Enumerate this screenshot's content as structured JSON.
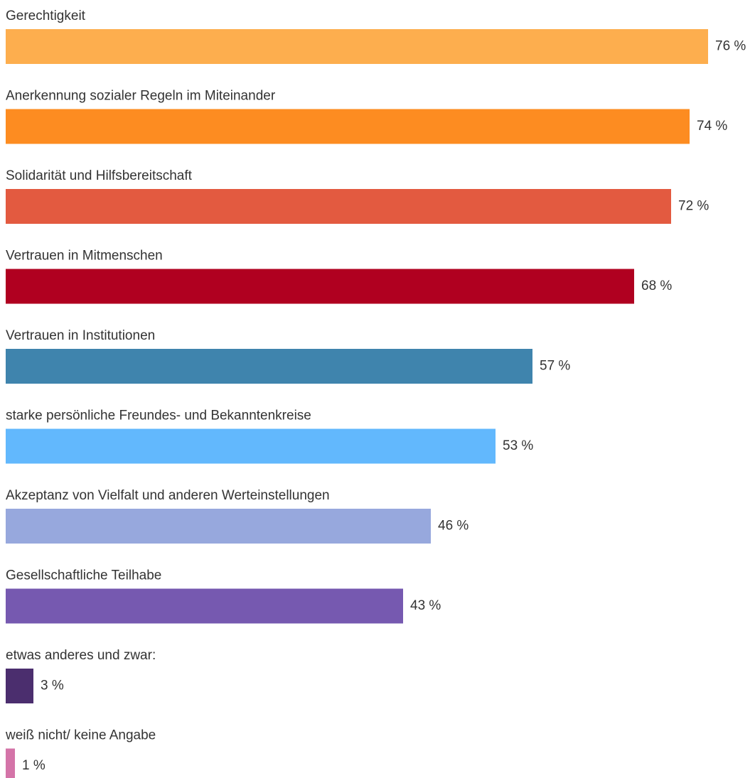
{
  "chart_data": {
    "type": "bar",
    "orientation": "horizontal",
    "categories": [
      "Gerechtigkeit",
      "Anerkennung sozialer Regeln im Miteinander",
      "Solidarität und Hilfsbereitschaft",
      "Vertrauen in Mitmenschen",
      "Vertrauen in Institutionen",
      "starke persönliche Freundes- und Bekanntenkreise",
      "Akzeptanz von Vielfalt und anderen Werteinstellungen",
      "Gesellschaftliche Teilhabe",
      "etwas anderes und zwar:",
      "weiß nicht/ keine Angabe"
    ],
    "values": [
      76,
      74,
      72,
      68,
      57,
      53,
      46,
      43,
      3,
      1
    ],
    "value_labels": [
      "76 %",
      "74 %",
      "72 %",
      "68 %",
      "57 %",
      "53 %",
      "46 %",
      "43 %",
      "3 %",
      "1 %"
    ],
    "colors": [
      "#fdae4e",
      "#fd8c21",
      "#e35a40",
      "#b00020",
      "#3f84ad",
      "#62b8fd",
      "#97a8dd",
      "#7659b0",
      "#4b2e6e",
      "#d474a8"
    ]
  }
}
